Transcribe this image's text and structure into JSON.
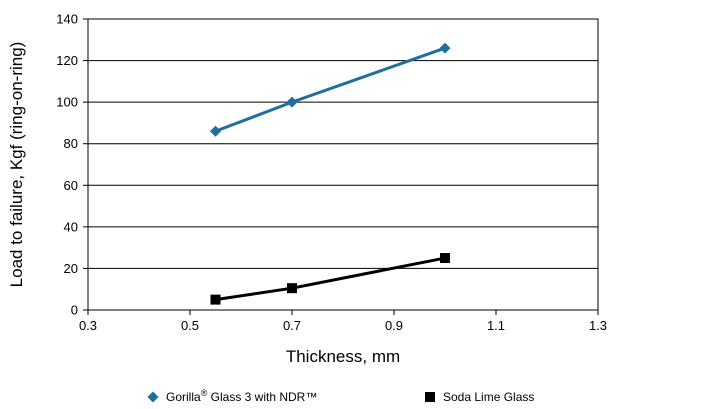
{
  "chart_data": {
    "type": "line",
    "xlabel": "Thickness, mm",
    "ylabel": "Load to failure, Kgf (ring-on-ring)",
    "xlim": [
      0.3,
      1.3
    ],
    "ylim": [
      0,
      140
    ],
    "xticks": [
      0.3,
      0.5,
      0.7,
      0.9,
      1.1,
      1.3
    ],
    "xtick_labels": [
      "0.3",
      "0.5",
      "0.7",
      "0.9",
      "1.1",
      "1.3"
    ],
    "yticks": [
      0,
      20,
      40,
      60,
      80,
      100,
      120,
      140
    ],
    "ytick_labels": [
      "0",
      "20",
      "40",
      "60",
      "80",
      "100",
      "120",
      "140"
    ],
    "grid": "horizontal",
    "legend_position": "bottom",
    "series": [
      {
        "name_main": "Gorilla",
        "name_sup": "®",
        "name_rest": " Glass 3 with NDR™",
        "marker": "diamond",
        "color": "#1f6e9e",
        "x": [
          0.55,
          0.7,
          1.0
        ],
        "y": [
          86,
          100,
          126
        ]
      },
      {
        "name": "Soda Lime Glass",
        "marker": "square",
        "color": "#000000",
        "x": [
          0.55,
          0.7,
          1.0
        ],
        "y": [
          5,
          10.5,
          25
        ]
      }
    ]
  }
}
